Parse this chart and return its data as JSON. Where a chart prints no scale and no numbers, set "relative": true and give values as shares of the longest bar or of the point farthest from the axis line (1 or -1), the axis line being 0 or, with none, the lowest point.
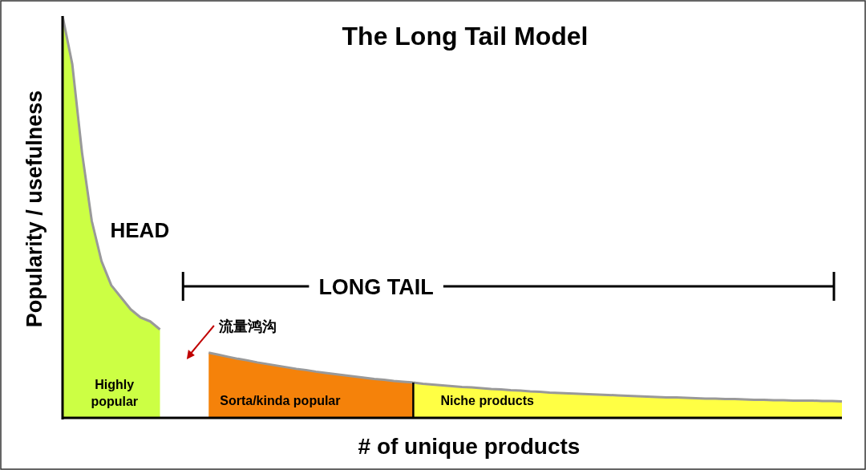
{
  "chart_data": {
    "type": "area",
    "relative": true,
    "title": "The Long Tail Model",
    "xlabel": "# of unique products",
    "ylabel": "Popularity / usefulness",
    "categories": [
      null,
      null,
      null,
      null,
      null,
      null,
      null,
      null,
      null,
      null,
      null,
      null,
      null,
      null,
      null,
      null,
      null,
      null,
      null,
      null,
      null,
      null,
      null,
      null,
      null,
      null,
      null,
      null,
      null,
      null,
      null,
      null,
      null,
      null,
      null,
      null,
      null,
      null,
      null,
      null,
      null,
      null,
      null,
      null,
      null,
      null,
      null,
      null,
      null,
      null,
      null,
      null,
      null,
      null,
      null,
      null,
      null,
      null,
      null,
      null,
      null,
      null,
      null,
      null,
      null,
      null,
      null,
      null,
      null,
      null,
      null,
      null,
      null,
      null,
      null,
      null,
      null,
      null,
      null,
      null,
      null
    ],
    "series": [
      {
        "name": "Highly popular",
        "color": "#ccff44",
        "values": [
          1.0,
          0.88,
          0.66,
          0.49,
          0.39,
          0.33,
          0.3,
          0.27,
          0.25,
          0.24,
          0.22,
          null,
          null,
          null,
          null,
          null,
          null,
          null,
          null,
          null,
          null,
          null,
          null,
          null,
          null,
          null,
          null,
          null,
          null,
          null,
          null,
          null,
          null,
          null,
          null,
          null,
          null,
          null,
          null,
          null,
          null,
          null,
          null,
          null,
          null,
          null,
          null,
          null,
          null,
          null,
          null,
          null,
          null,
          null,
          null,
          null,
          null,
          null,
          null,
          null,
          null,
          null,
          null,
          null,
          null,
          null,
          null,
          null,
          null,
          null,
          null,
          null,
          null,
          null,
          null,
          null,
          null,
          null,
          null,
          null,
          null
        ]
      },
      {
        "name": "Sorta/kinda popular",
        "color": "#f5820a",
        "values": [
          null,
          null,
          null,
          null,
          null,
          null,
          null,
          null,
          null,
          null,
          null,
          null,
          null,
          null,
          null,
          0.162,
          0.157,
          0.152,
          0.147,
          0.143,
          0.138,
          0.134,
          0.13,
          0.126,
          0.122,
          0.119,
          0.115,
          0.112,
          0.109,
          0.106,
          0.103,
          0.1,
          0.097,
          0.095,
          0.092,
          0.09,
          0.088,
          null,
          null,
          null,
          null,
          null,
          null,
          null,
          null,
          null,
          null,
          null,
          null,
          null,
          null,
          null,
          null,
          null,
          null,
          null,
          null,
          null,
          null,
          null,
          null,
          null,
          null,
          null,
          null,
          null,
          null,
          null,
          null,
          null,
          null,
          null,
          null,
          null,
          null,
          null,
          null,
          null,
          null,
          null,
          null
        ]
      },
      {
        "name": "Niche products",
        "color": "#ffff44",
        "values": [
          null,
          null,
          null,
          null,
          null,
          null,
          null,
          null,
          null,
          null,
          null,
          null,
          null,
          null,
          null,
          null,
          null,
          null,
          null,
          null,
          null,
          null,
          null,
          null,
          null,
          null,
          null,
          null,
          null,
          null,
          null,
          null,
          null,
          null,
          null,
          null,
          0.088,
          0.085,
          0.083,
          0.081,
          0.079,
          0.077,
          0.076,
          0.074,
          0.072,
          0.071,
          0.069,
          0.068,
          0.066,
          0.065,
          0.063,
          0.062,
          0.061,
          0.06,
          0.059,
          0.058,
          0.057,
          0.056,
          0.055,
          0.054,
          0.053,
          0.052,
          0.051,
          0.051,
          0.05,
          0.049,
          0.048,
          0.048,
          0.047,
          0.047,
          0.046,
          0.045,
          0.045,
          0.044,
          0.044,
          0.043,
          0.043,
          0.043,
          0.042,
          0.042,
          0.041
        ]
      }
    ],
    "annotations": [
      "HEAD",
      "LONG TAIL",
      "流量鸿沟"
    ]
  }
}
